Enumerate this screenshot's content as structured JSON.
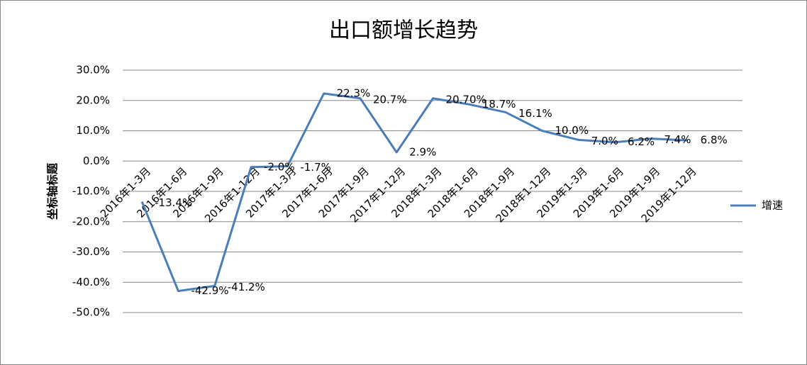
{
  "chart_data": {
    "type": "line",
    "title": "出口额增长趋势",
    "y_label": "坐标轴标题",
    "categories": [
      "2016年1-3月",
      "2016年1-6月",
      "2016年1-9月",
      "2016年1-12月",
      "2017年1-3月",
      "2017年1-6月",
      "2017年1-9月",
      "2017年1-12月",
      "2018年1-3月",
      "2018年1-6月",
      "2018年1-9月",
      "2018年1-12月",
      "2019年1-3月",
      "2019年1-6月",
      "2019年1-9月",
      "2019年1-12月"
    ],
    "series": [
      {
        "name": "增速",
        "color": "#4a7ebb",
        "values": [
          -13.4,
          -42.9,
          -41.2,
          -2.0,
          -1.7,
          22.3,
          20.7,
          2.9,
          20.7,
          18.7,
          16.1,
          10.0,
          7.0,
          6.2,
          7.4,
          6.8
        ],
        "value_labels": [
          "-13.4%",
          "-42.9%",
          "-41.2%",
          "-2.0%",
          "-1.7%",
          "22.3%",
          "20.7%",
          "2.9%",
          "20.70%",
          "18.7%",
          "16.1%",
          "10.0%",
          "7.0%",
          "6.2%",
          "7.4%",
          "6.8%"
        ]
      }
    ],
    "ylim": [
      -50,
      30
    ],
    "yticks": [
      {
        "value": -50,
        "label": "-50.0%"
      },
      {
        "value": -40,
        "label": "-40.0%"
      },
      {
        "value": -30,
        "label": "-30.0%"
      },
      {
        "value": -20,
        "label": "-20.0%"
      },
      {
        "value": -10,
        "label": "-10.0%"
      },
      {
        "value": 0,
        "label": "0.0%"
      },
      {
        "value": 10,
        "label": "10.0%"
      },
      {
        "value": 20,
        "label": "20.0%"
      },
      {
        "value": 30,
        "label": "30.0%"
      }
    ],
    "grid": true,
    "legend": "right"
  }
}
